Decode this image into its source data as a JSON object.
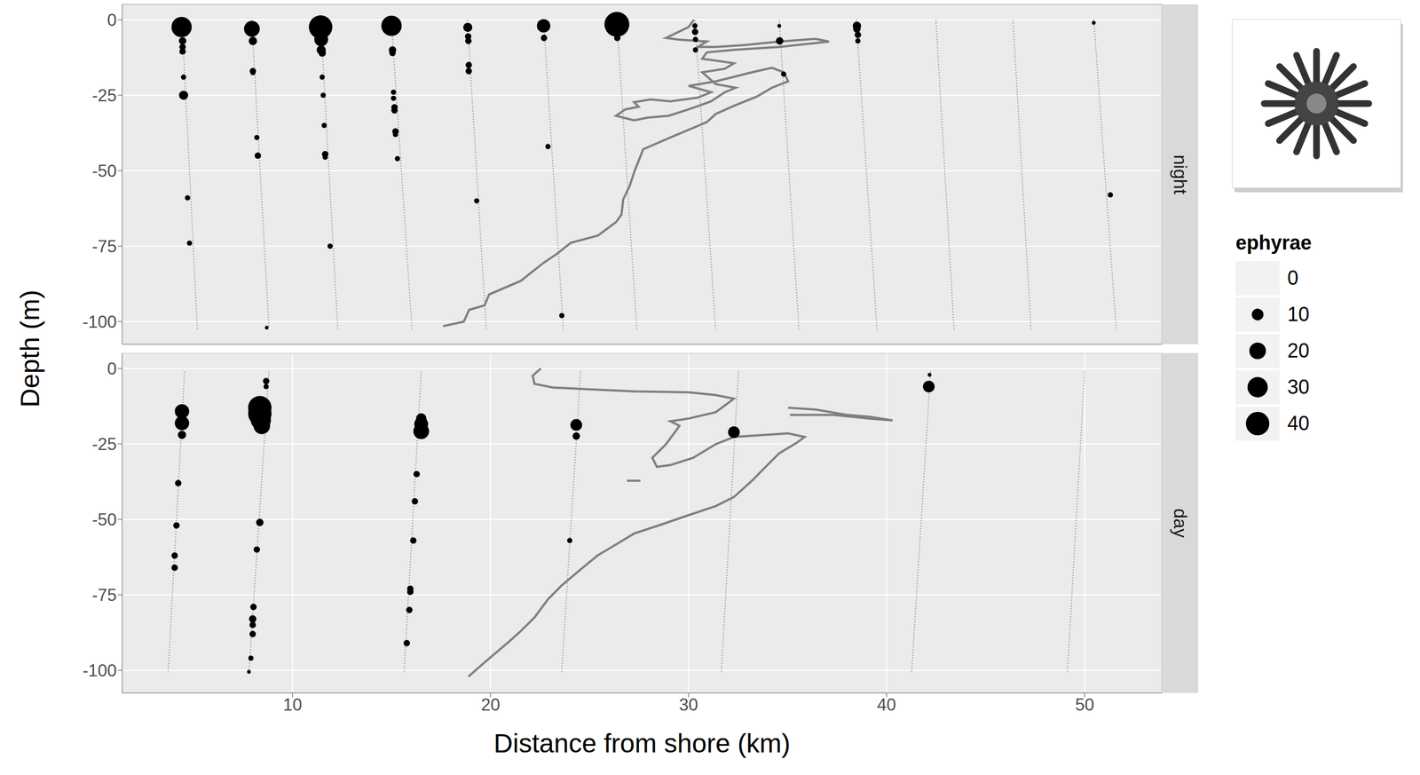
{
  "chart_data": {
    "type": "scatter",
    "x_label": "Distance from shore (km)",
    "y_label": "Depth (m)",
    "xlim": [
      1.4,
      53.9
    ],
    "xticks": [
      10,
      20,
      30,
      40,
      50
    ],
    "ylim": [
      -107.5,
      5.1
    ],
    "yticks": [
      0,
      -25,
      -50,
      -75,
      -100
    ],
    "grid": true,
    "legend": "right",
    "size_legend": {
      "title": "ephyrae",
      "values": [
        0,
        10,
        20,
        30,
        40
      ]
    },
    "panels": [
      {
        "label": "night",
        "series": [
          {
            "type": "line",
            "line_style": "dotted",
            "color": "#9a9a9a",
            "x": [
              4.42,
              5.2
            ],
            "y": [
              0,
              -103
            ]
          },
          {
            "type": "line",
            "line_style": "dotted",
            "color": "#9a9a9a",
            "x": [
              7.94,
              8.81
            ],
            "y": [
              0,
              -102
            ]
          },
          {
            "type": "line",
            "line_style": "dotted",
            "color": "#9a9a9a",
            "x": [
              11.42,
              12.29
            ],
            "y": [
              0,
              -103
            ]
          },
          {
            "type": "line",
            "line_style": "dotted",
            "color": "#9a9a9a",
            "x": [
              14.99,
              16.04
            ],
            "y": [
              0,
              -103
            ]
          },
          {
            "type": "line",
            "line_style": "dotted",
            "color": "#9a9a9a",
            "x": [
              18.83,
              19.79
            ],
            "y": [
              0,
              -103
            ]
          },
          {
            "type": "line",
            "line_style": "dotted",
            "color": "#9a9a9a",
            "x": [
              22.68,
              23.68
            ],
            "y": [
              0,
              -103
            ]
          },
          {
            "type": "line",
            "line_style": "dotted",
            "color": "#9a9a9a",
            "x": [
              26.38,
              27.39
            ],
            "y": [
              0,
              -103
            ]
          },
          {
            "type": "line",
            "line_style": "dotted",
            "color": "#9a9a9a",
            "x": [
              30.32,
              31.37
            ],
            "y": [
              0,
              -103
            ]
          },
          {
            "type": "line",
            "line_style": "dotted",
            "color": "#9a9a9a",
            "x": [
              34.58,
              35.58
            ],
            "y": [
              0,
              -103
            ]
          },
          {
            "type": "line",
            "line_style": "dotted",
            "color": "#9a9a9a",
            "x": [
              38.47,
              39.52
            ],
            "y": [
              0,
              -103
            ]
          },
          {
            "type": "line",
            "line_style": "dotted",
            "color": "#9a9a9a",
            "x": [
              42.49,
              43.41
            ],
            "y": [
              0,
              -103
            ]
          },
          {
            "type": "line",
            "line_style": "dotted",
            "color": "#9a9a9a",
            "x": [
              46.38,
              47.3
            ],
            "y": [
              0,
              -103
            ]
          },
          {
            "type": "line",
            "line_style": "dotted",
            "color": "#9a9a9a",
            "x": [
              50.46,
              51.6
            ],
            "y": [
              0,
              -103
            ]
          },
          {
            "type": "line",
            "line_style": "solid",
            "color": "#7f7f7f",
            "x": [
              17.6,
              18.65,
              18.92,
              19.7,
              19.93,
              21.53,
              22.68,
              23.36,
              24.05,
              25.42,
              26.34,
              26.61,
              26.7,
              27.03,
              27.25,
              27.71,
              29.08,
              30.92,
              31.37,
              32.29,
              33.43,
              34.21,
              35.03,
              34.81,
              34.21,
              33.2,
              32.29,
              31.37,
              30.0,
              31.14,
              30.46,
              29.08,
              28.08,
              27.25,
              27.48,
              26.8,
              26.34,
              27.25,
              27.94,
              28.99,
              30.0,
              31.14,
              31.83,
              32.38,
              31.37,
              30.69,
              31.83,
              32.29,
              31.37,
              30.69,
              30.92,
              32.38,
              34.58,
              37.09,
              36.41,
              34.58,
              32.75,
              31.37,
              30.46,
              30.92,
              29.54,
              28.86,
              30.0,
              30.27
            ],
            "y": [
              -101.5,
              -100,
              -96.1,
              -94.6,
              -91,
              -86.5,
              -80.5,
              -77.5,
              -73.9,
              -71.5,
              -67,
              -64.6,
              -59.5,
              -55,
              -50.5,
              -42.9,
              -39,
              -33.9,
              -31.2,
              -28.5,
              -25.5,
              -22.5,
              -20.4,
              -17.4,
              -15.9,
              -17.4,
              -18.9,
              -20.4,
              -21.9,
              -24,
              -25.8,
              -27,
              -26.4,
              -27.3,
              -28.8,
              -29.7,
              -31.8,
              -33.3,
              -32.4,
              -31.8,
              -29.7,
              -27,
              -24,
              -22.5,
              -21.3,
              -17.4,
              -16.2,
              -14.4,
              -13.5,
              -12.9,
              -10.8,
              -9.9,
              -9,
              -7.2,
              -6.3,
              -7.2,
              -8.4,
              -9,
              -9,
              -7.2,
              -6.6,
              -6,
              -2.4,
              0
            ]
          },
          {
            "type": "scatter",
            "marker": "circle",
            "color": "#000000",
            "x": [
              4.4,
              4.45,
              4.45,
              4.45,
              4.5,
              4.5,
              4.7,
              4.8,
              7.95,
              8.0,
              8.0,
              8.0,
              8.2,
              8.25,
              8.7,
              11.42,
              11.45,
              11.45,
              11.5,
              11.5,
              11.55,
              11.6,
              11.65,
              11.65,
              11.9,
              15.0,
              15.05,
              15.05,
              15.1,
              15.1,
              15.15,
              15.15,
              15.2,
              15.2,
              15.3,
              18.85,
              18.87,
              18.88,
              18.9,
              18.9,
              19.3,
              22.68,
              22.7,
              22.9,
              23.6,
              26.38,
              26.4,
              30.32,
              30.33,
              30.35,
              30.35,
              34.58,
              34.6,
              34.8,
              38.5,
              38.5,
              38.55,
              38.55,
              50.46,
              51.3
            ],
            "y": [
              -2.4,
              -7,
              -9,
              -10.5,
              -19,
              -25,
              -59,
              -74,
              -3,
              -7,
              -17,
              -17.5,
              -39,
              -45,
              -102,
              -2.4,
              -6.5,
              -10,
              -11,
              -19,
              -25,
              -35,
              -44.5,
              -45.5,
              -75,
              -2,
              -10,
              -11,
              -24,
              -26,
              -29,
              -30,
              -37,
              -38,
              -46,
              -2.5,
              -5.5,
              -7,
              -15,
              -17,
              -60,
              -2,
              -6,
              -42,
              -98,
              -1.5,
              -6,
              -2,
              -4,
              -6.5,
              -10,
              -2,
              -7,
              -18,
              -2,
              -3,
              -5,
              -7,
              -1,
              -58
            ],
            "ephyrae": [
              30,
              4,
              3,
              3,
              2,
              6,
              2,
              2,
              18,
              5,
              3,
              2,
              2,
              3,
              1,
              40,
              14,
              6,
              4,
              2,
              2,
              2,
              3,
              2,
              2,
              30,
              4,
              3,
              2,
              2,
              3,
              3,
              3,
              2,
              2,
              6,
              3,
              3,
              3,
              3,
              2,
              13,
              3,
              2,
              2,
              45,
              3,
              2,
              3,
              2,
              2,
              1,
              4,
              2,
              5,
              4,
              3,
              2,
              1,
              2
            ]
          }
        ]
      },
      {
        "label": "day",
        "series": [
          {
            "type": "line",
            "line_style": "dotted",
            "color": "#9a9a9a",
            "x": [
              4.55,
              3.72
            ],
            "y": [
              -1,
              -101
            ]
          },
          {
            "type": "line",
            "line_style": "dotted",
            "color": "#9a9a9a",
            "x": [
              8.81,
              7.8
            ],
            "y": [
              -1,
              -101
            ]
          },
          {
            "type": "line",
            "line_style": "dotted",
            "color": "#9a9a9a",
            "x": [
              16.5,
              15.63
            ],
            "y": [
              -1,
              -101
            ]
          },
          {
            "type": "line",
            "line_style": "dotted",
            "color": "#9a9a9a",
            "x": [
              24.55,
              23.59
            ],
            "y": [
              -1,
              -101
            ]
          },
          {
            "type": "line",
            "line_style": "dotted",
            "color": "#9a9a9a",
            "x": [
              32.52,
              31.65
            ],
            "y": [
              -1,
              -101
            ]
          },
          {
            "type": "line",
            "line_style": "dotted",
            "color": "#9a9a9a",
            "x": [
              42.22,
              41.26
            ],
            "y": [
              -1,
              -101
            ]
          },
          {
            "type": "line",
            "line_style": "dotted",
            "color": "#9a9a9a",
            "x": [
              50.0,
              49.13
            ],
            "y": [
              -1,
              -101
            ]
          },
          {
            "type": "line",
            "line_style": "solid",
            "color": "#7f7f7f",
            "x": [
              18.88,
              19.24,
              19.93,
              20.85,
              21.53,
              22.22,
              22.91,
              23.59,
              24.51,
              25.42,
              26.34,
              27.25,
              28.63,
              30.0,
              31.37,
              32.29,
              33.2,
              33.89,
              34.58,
              35.49,
              35.86,
              35.03,
              33.66,
              32.29,
              31.37,
              30.23,
              29.08,
              28.4,
              28.17,
              28.86,
              29.31,
              29.54,
              29.08,
              30.0,
              31.37,
              32.29,
              31.37,
              30.0,
              27.25,
              24.97,
              23.14,
              22.22,
              22.13,
              22.54
            ],
            "y": [
              -102.1,
              -100,
              -96.1,
              -91,
              -87,
              -82.5,
              -76.4,
              -71.9,
              -66.8,
              -61.9,
              -58.3,
              -54.7,
              -51.7,
              -48.6,
              -45.6,
              -42.6,
              -37.2,
              -32.6,
              -28.1,
              -24.5,
              -22.7,
              -21.5,
              -22.1,
              -22.7,
              -25.1,
              -29.6,
              -32,
              -32.6,
              -29.6,
              -25.1,
              -21.1,
              -19,
              -17.5,
              -16.6,
              -14.5,
              -10,
              -8.8,
              -7.9,
              -7.6,
              -6.9,
              -6.3,
              -5.1,
              -2.4,
              0
            ]
          },
          {
            "type": "line",
            "line_style": "solid",
            "color": "#7f7f7f",
            "x": [
              35.03,
              36.41,
              38.01,
              39.15,
              40.3,
              39.15,
              37.32,
              35.72,
              35.12
            ],
            "y": [
              -13.0,
              -13.6,
              -15.4,
              -16.0,
              -17.2,
              -16.6,
              -15.4,
              -15.4,
              -15.4
            ]
          },
          {
            "type": "line",
            "line_style": "solid",
            "color": "#7f7f7f",
            "x": [
              26.89,
              27.57
            ],
            "y": [
              -37.2,
              -37.2
            ]
          },
          {
            "type": "scatter",
            "marker": "circle",
            "color": "#000000",
            "x": [
              4.42,
              4.42,
              4.42,
              4.23,
              4.14,
              4.05,
              4.05,
              8.67,
              8.67,
              8.35,
              8.35,
              8.4,
              8.45,
              8.35,
              8.2,
              8.03,
              7.99,
              7.99,
              7.99,
              7.9,
              7.8,
              16.5,
              16.5,
              16.5,
              16.27,
              16.18,
              16.1,
              15.95,
              15.95,
              15.9,
              15.77,
              24.33,
              24.33,
              24.0,
              32.29,
              42.17,
              42.13
            ],
            "y": [
              -14.2,
              -18.1,
              -22,
              -38,
              -52,
              -62,
              -66,
              -4.2,
              -6,
              -13,
              -15,
              -17,
              -19,
              -51,
              -60,
              -79,
              -83,
              -85,
              -88,
              -96,
              -100.5,
              -16.6,
              -18.4,
              -20.8,
              -35,
              -44,
              -57,
              -73,
              -74,
              -80,
              -91,
              -18.7,
              -22.4,
              -57,
              -21.1,
              -2.1,
              -6
            ],
            "ephyrae": [
              15,
              15,
              5,
              3,
              3,
              3,
              3,
              3,
              2,
              40,
              40,
              30,
              20,
              4,
              3,
              3,
              4,
              3,
              3,
              2,
              1,
              8,
              14,
              18,
              3,
              3,
              3,
              3,
              3,
              3,
              3,
              10,
              4,
              2,
              10,
              1,
              10
            ]
          }
        ]
      }
    ]
  }
}
